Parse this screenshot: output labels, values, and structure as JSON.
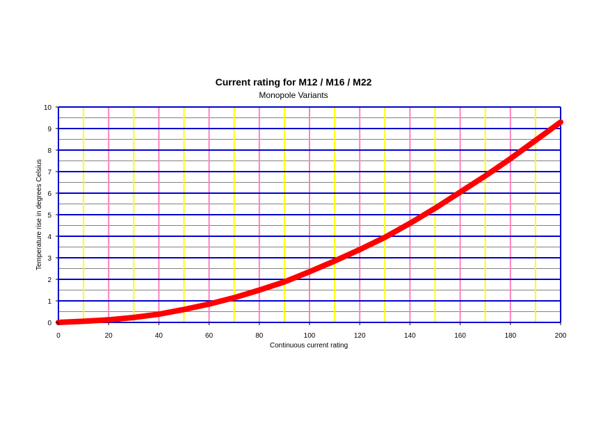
{
  "chart_data": {
    "type": "line",
    "title": "Current rating for M12 / M16 / M22",
    "subtitle": "Monopole Variants",
    "xlabel": "Continuous current rating",
    "ylabel": "Temperature rise in degrees Celsius",
    "xlim": [
      0,
      200
    ],
    "ylim": [
      0,
      10
    ],
    "x_ticks": [
      0,
      20,
      40,
      60,
      80,
      100,
      120,
      140,
      160,
      180,
      200
    ],
    "y_ticks": [
      0,
      1,
      2,
      3,
      4,
      5,
      6,
      7,
      8,
      9,
      10
    ],
    "grid": true,
    "legend": "none",
    "series": [
      {
        "color": "#ff0000",
        "x": [
          0,
          10,
          20,
          30,
          40,
          50,
          60,
          70,
          80,
          90,
          100,
          110,
          120,
          130,
          140,
          150,
          160,
          170,
          180,
          190,
          200
        ],
        "values": [
          0.0,
          0.05,
          0.12,
          0.23,
          0.38,
          0.6,
          0.85,
          1.15,
          1.5,
          1.88,
          2.35,
          2.85,
          3.38,
          3.95,
          4.6,
          5.3,
          6.05,
          6.8,
          7.6,
          8.45,
          9.3
        ]
      }
    ],
    "colors": {
      "major_grid": "#0000cc",
      "minor_grid": "#808080",
      "vgrid_pink": "#ff80c0",
      "vgrid_yellow": "#ffff00"
    }
  }
}
